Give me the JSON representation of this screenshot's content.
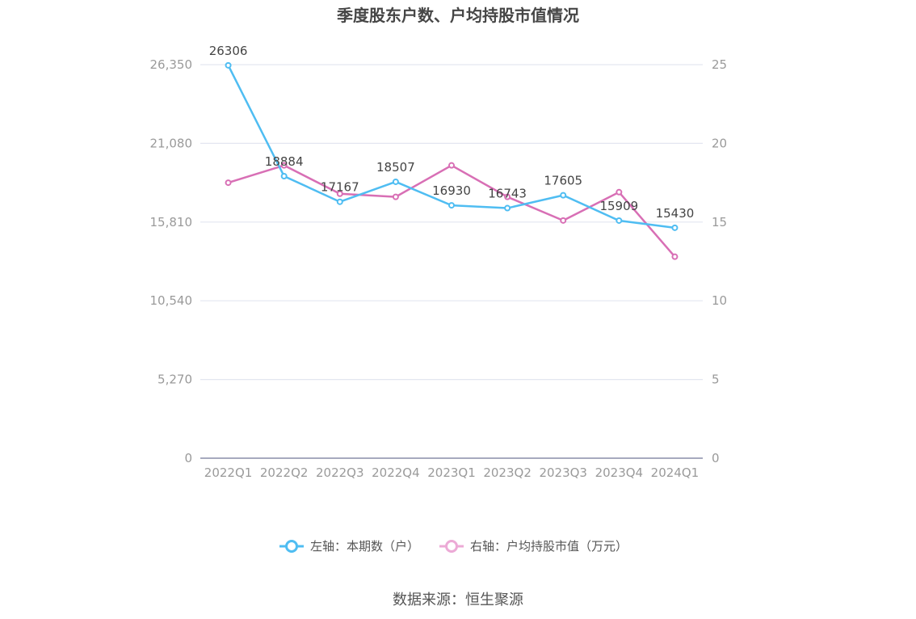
{
  "chart_data": {
    "type": "line",
    "title": "季度股东户数、户均持股市值情况",
    "categories": [
      "2022Q1",
      "2022Q2",
      "2022Q3",
      "2022Q4",
      "2023Q1",
      "2023Q2",
      "2023Q3",
      "2023Q4",
      "2024Q1"
    ],
    "y_left": {
      "ticks": [
        "0",
        "5,270",
        "10,540",
        "15,810",
        "21,080",
        "26,350"
      ],
      "lim": [
        0,
        26350
      ]
    },
    "y_right": {
      "ticks": [
        "0",
        "5",
        "10",
        "15",
        "20",
        "25"
      ],
      "lim": [
        0,
        25
      ]
    },
    "grid": true,
    "legend_position": "bottom",
    "series": [
      {
        "name": "左轴：本期数（户）",
        "axis": "left",
        "color": "#4fbdf2",
        "values": [
          26306,
          18884,
          17167,
          18507,
          16930,
          16743,
          17605,
          15909,
          15430
        ],
        "labels": [
          "26306",
          "18884",
          "17167",
          "18507",
          "16930",
          "16743",
          "17605",
          "15909",
          "15430"
        ]
      },
      {
        "name": "右轴：户均持股市值（万元）",
        "axis": "right",
        "color": "#d86fb5",
        "values": [
          17.5,
          18.6,
          16.8,
          16.6,
          18.6,
          16.6,
          15.1,
          16.9,
          12.8
        ]
      }
    ]
  },
  "source": "数据来源：恒生聚源",
  "colors": {
    "grid": "#e3e6f0",
    "axis": "#8a8ea8",
    "tick": "#9a9a9a"
  }
}
